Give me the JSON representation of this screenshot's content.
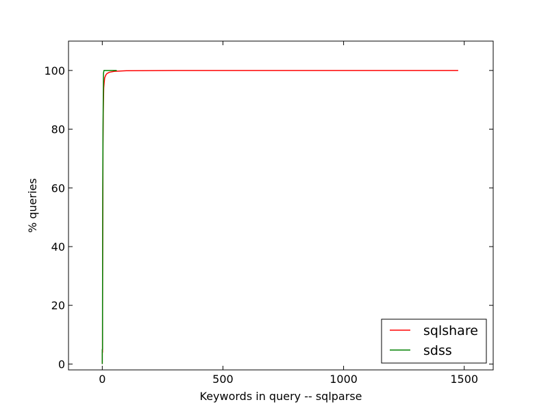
{
  "chart_data": {
    "type": "line",
    "title": "",
    "xlabel": "Keywords in query -- sqlparse",
    "ylabel": "% queries",
    "xlim": [
      -140,
      1620
    ],
    "ylim": [
      -2,
      110
    ],
    "x_ticks": [
      0,
      500,
      1000,
      1500
    ],
    "y_ticks": [
      0,
      20,
      40,
      60,
      80,
      100
    ],
    "grid": false,
    "legend_position": "lower-right",
    "series": [
      {
        "name": "sqlshare",
        "color": "#ff0000",
        "points": [
          [
            0,
            0
          ],
          [
            0,
            4
          ],
          [
            1,
            4
          ],
          [
            1,
            10
          ],
          [
            2,
            45
          ],
          [
            3,
            75
          ],
          [
            4,
            85
          ],
          [
            5,
            90
          ],
          [
            6,
            94
          ],
          [
            8,
            96
          ],
          [
            10,
            97.5
          ],
          [
            15,
            98.5
          ],
          [
            20,
            99
          ],
          [
            30,
            99.4
          ],
          [
            50,
            99.7
          ],
          [
            100,
            99.9
          ],
          [
            300,
            100
          ],
          [
            1000,
            100
          ],
          [
            1475,
            100
          ]
        ]
      },
      {
        "name": "sdss",
        "color": "#008000",
        "points": [
          [
            0,
            0
          ],
          [
            0,
            5
          ],
          [
            1,
            5
          ],
          [
            1,
            20
          ],
          [
            2,
            60
          ],
          [
            3,
            80
          ],
          [
            4,
            90
          ],
          [
            5,
            99
          ],
          [
            7,
            100
          ],
          [
            60,
            100
          ]
        ]
      }
    ]
  }
}
